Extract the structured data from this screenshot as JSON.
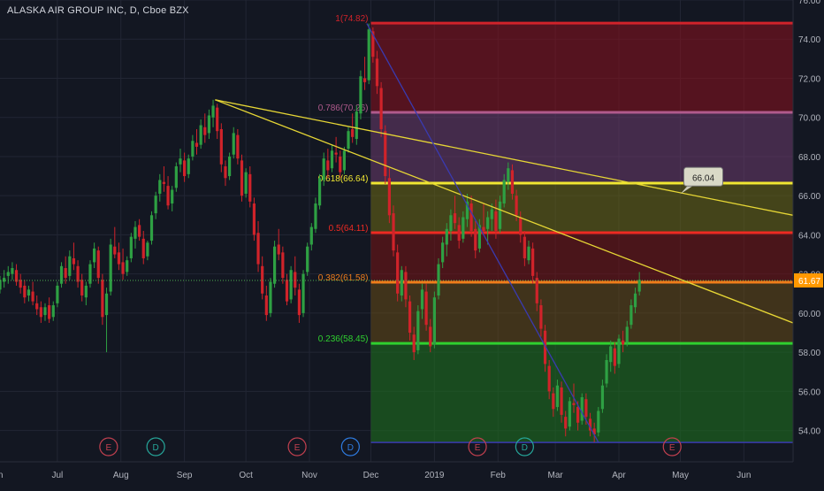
{
  "title": "ALASKA AIR GROUP INC, D, Cboe BZX",
  "colors": {
    "background": "#131722",
    "grid": "#222634",
    "axis_text": "#b2b5be",
    "up": "#2ea043",
    "down": "#d0232a",
    "trend": "#e6d635",
    "diag": "#3a3ab0"
  },
  "chart_data": {
    "type": "candlestick",
    "title": "ALASKA AIR GROUP INC, D, Cboe BZX",
    "ylim": [
      52.4,
      76.0
    ],
    "y_ticks": [
      54.0,
      56.0,
      58.0,
      60.0,
      62.0,
      64.0,
      66.0,
      68.0,
      70.0,
      72.0,
      74.0,
      76.0
    ],
    "x_ticks": [
      {
        "label": "Jun",
        "day": 0
      },
      {
        "label": "Jul",
        "day": 30
      },
      {
        "label": "Aug",
        "day": 61
      },
      {
        "label": "Sep",
        "day": 92
      },
      {
        "label": "Oct",
        "day": 122
      },
      {
        "label": "Nov",
        "day": 153
      },
      {
        "label": "Dec",
        "day": 183
      },
      {
        "label": "2019",
        "day": 214
      },
      {
        "label": "Feb",
        "day": 245
      },
      {
        "label": "Mar",
        "day": 273
      },
      {
        "label": "Apr",
        "day": 304
      },
      {
        "label": "May",
        "day": 334
      },
      {
        "label": "Jun",
        "day": 365
      }
    ],
    "x_range": [
      2,
      389
    ],
    "last_price": 61.67,
    "last_price_label": "61.67",
    "fib_levels": [
      {
        "ratio": 1,
        "price": 74.82,
        "label": "1(74.82)",
        "color": "#d0232a"
      },
      {
        "ratio": 0.786,
        "price": 70.26,
        "label": "0.786(70.26)",
        "color": "#b05a8c"
      },
      {
        "ratio": 0.618,
        "price": 66.64,
        "label": "0.618(66.64)",
        "color": "#f0e732"
      },
      {
        "ratio": 0.5,
        "price": 64.11,
        "label": "0.5(64.11)",
        "color": "#ee2a22"
      },
      {
        "ratio": 0.382,
        "price": 61.58,
        "label": "0.382(61.58)",
        "color": "#f07c1a"
      },
      {
        "ratio": 0.236,
        "price": 58.45,
        "label": "0.236(58.45)",
        "color": "#2fd02f"
      },
      {
        "ratio": 0,
        "price": 53.39,
        "label": "",
        "color": "#3a3ab0"
      }
    ],
    "fib_zones": [
      {
        "from": 74.82,
        "to": 70.26,
        "color": "rgba(140,16,30,0.55)"
      },
      {
        "from": 70.26,
        "to": 66.64,
        "color": "rgba(110,60,110,0.55)"
      },
      {
        "from": 66.64,
        "to": 64.11,
        "color": "rgba(110,105,20,0.55)"
      },
      {
        "from": 64.11,
        "to": 61.58,
        "color": "rgba(120,20,20,0.55)"
      },
      {
        "from": 61.58,
        "to": 58.45,
        "color": "rgba(110,80,20,0.5)"
      },
      {
        "from": 58.45,
        "to": 53.39,
        "color": "rgba(30,110,30,0.6)"
      }
    ],
    "fib_start_day": 183,
    "fib_end_day": 389,
    "trendlines": [
      {
        "from": [
          107,
          70.9
        ],
        "to": [
          389,
          65.0
        ],
        "color": "#e6d635"
      },
      {
        "from": [
          107,
          70.9
        ],
        "to": [
          389,
          59.5
        ],
        "color": "#e6d635"
      },
      {
        "from": [
          181,
          74.8
        ],
        "to": [
          294,
          53.4
        ],
        "color": "#3a3ab0"
      }
    ],
    "callout": {
      "label": "66.04",
      "price": 66.04,
      "day": 334
    },
    "events": [
      {
        "type": "E",
        "day": 55,
        "color": "#c2404f"
      },
      {
        "type": "D",
        "day": 78,
        "color": "#26a69a"
      },
      {
        "type": "E",
        "day": 147,
        "color": "#c2404f"
      },
      {
        "type": "D",
        "day": 173,
        "color": "#2e7be0"
      },
      {
        "type": "E",
        "day": 235,
        "color": "#c2404f"
      },
      {
        "type": "D",
        "day": 258,
        "color": "#26a69a"
      },
      {
        "type": "E",
        "day": 330,
        "color": "#c2404f"
      }
    ],
    "candles": [
      [
        2,
        61.2,
        61.9,
        61.0,
        61.7
      ],
      [
        4,
        61.6,
        62.2,
        61.3,
        61.8
      ],
      [
        6,
        61.9,
        62.4,
        61.5,
        62.1
      ],
      [
        8,
        62.0,
        62.6,
        61.7,
        62.3
      ],
      [
        10,
        62.2,
        62.5,
        61.4,
        61.6
      ],
      [
        12,
        61.7,
        62.0,
        61.0,
        61.3
      ],
      [
        14,
        61.4,
        61.7,
        60.5,
        60.8
      ],
      [
        16,
        60.9,
        61.4,
        60.6,
        61.2
      ],
      [
        18,
        61.1,
        61.6,
        60.4,
        60.6
      ],
      [
        20,
        60.5,
        60.9,
        59.9,
        60.2
      ],
      [
        22,
        60.3,
        60.6,
        59.5,
        59.8
      ],
      [
        24,
        59.9,
        60.5,
        59.6,
        60.3
      ],
      [
        26,
        60.4,
        60.8,
        59.5,
        59.7
      ],
      [
        28,
        59.8,
        60.6,
        59.6,
        60.4
      ],
      [
        30,
        60.5,
        61.6,
        60.3,
        61.4
      ],
      [
        32,
        61.5,
        62.6,
        61.3,
        62.4
      ],
      [
        34,
        62.3,
        62.9,
        61.5,
        61.8
      ],
      [
        36,
        61.9,
        63.2,
        61.7,
        62.9
      ],
      [
        38,
        62.8,
        63.6,
        62.2,
        62.5
      ],
      [
        40,
        62.4,
        62.7,
        61.3,
        61.6
      ],
      [
        42,
        61.7,
        62.0,
        60.6,
        60.9
      ],
      [
        44,
        60.8,
        61.6,
        60.4,
        61.4
      ],
      [
        46,
        61.5,
        62.7,
        61.3,
        62.5
      ],
      [
        48,
        62.6,
        63.6,
        62.3,
        63.3
      ],
      [
        50,
        63.2,
        63.4,
        61.5,
        61.8
      ],
      [
        52,
        61.7,
        62.0,
        59.4,
        59.8
      ],
      [
        54,
        59.9,
        61.3,
        58.0,
        61.0
      ],
      [
        56,
        61.1,
        63.8,
        60.9,
        63.5
      ],
      [
        58,
        63.4,
        64.4,
        62.8,
        63.0
      ],
      [
        60,
        63.1,
        63.6,
        62.2,
        62.5
      ],
      [
        62,
        62.6,
        63.3,
        61.7,
        62.0
      ],
      [
        64,
        62.1,
        62.9,
        61.9,
        62.7
      ],
      [
        66,
        62.8,
        64.1,
        62.6,
        63.9
      ],
      [
        68,
        63.8,
        64.7,
        63.3,
        64.4
      ],
      [
        70,
        64.5,
        64.8,
        63.7,
        63.9
      ],
      [
        72,
        63.8,
        64.2,
        62.5,
        62.8
      ],
      [
        74,
        62.9,
        63.7,
        62.7,
        63.6
      ],
      [
        76,
        63.7,
        65.2,
        63.5,
        65.0
      ],
      [
        78,
        65.1,
        66.2,
        64.8,
        66.0
      ],
      [
        80,
        66.1,
        67.1,
        65.7,
        66.8
      ],
      [
        82,
        66.7,
        67.5,
        66.2,
        66.6
      ],
      [
        84,
        66.5,
        67.0,
        65.3,
        65.5
      ],
      [
        86,
        65.6,
        66.5,
        65.2,
        66.3
      ],
      [
        88,
        66.4,
        67.7,
        66.2,
        67.5
      ],
      [
        90,
        67.6,
        68.4,
        67.2,
        67.9
      ],
      [
        92,
        67.8,
        68.2,
        66.7,
        67.0
      ],
      [
        94,
        67.1,
        68.1,
        66.9,
        67.9
      ],
      [
        96,
        68.0,
        69.1,
        67.8,
        68.8
      ],
      [
        98,
        68.7,
        69.4,
        68.1,
        68.5
      ],
      [
        100,
        68.6,
        69.9,
        68.4,
        69.6
      ],
      [
        102,
        69.5,
        70.2,
        68.7,
        69.1
      ],
      [
        104,
        69.2,
        70.4,
        68.9,
        70.1
      ],
      [
        106,
        70.0,
        70.9,
        69.5,
        70.6
      ],
      [
        108,
        70.5,
        70.7,
        68.9,
        69.3
      ],
      [
        110,
        69.4,
        69.7,
        67.2,
        67.6
      ],
      [
        112,
        67.5,
        67.8,
        66.5,
        66.9
      ],
      [
        114,
        67.0,
        68.2,
        66.8,
        68.0
      ],
      [
        116,
        68.1,
        69.5,
        67.9,
        69.2
      ],
      [
        118,
        69.1,
        69.4,
        67.6,
        67.9
      ],
      [
        120,
        67.8,
        68.1,
        65.7,
        66.0
      ],
      [
        122,
        66.1,
        67.4,
        65.9,
        67.2
      ],
      [
        124,
        67.1,
        67.5,
        65.4,
        65.7
      ],
      [
        126,
        65.6,
        65.9,
        63.7,
        64.0
      ],
      [
        128,
        64.1,
        64.7,
        62.1,
        62.5
      ],
      [
        130,
        62.4,
        62.9,
        60.7,
        61.0
      ],
      [
        132,
        60.9,
        61.4,
        59.6,
        59.9
      ],
      [
        134,
        60.0,
        61.8,
        59.8,
        61.6
      ],
      [
        136,
        61.5,
        63.7,
        61.3,
        63.4
      ],
      [
        138,
        63.5,
        64.3,
        62.7,
        63.0
      ],
      [
        140,
        63.1,
        63.4,
        61.5,
        61.8
      ],
      [
        142,
        61.7,
        62.0,
        60.4,
        60.6
      ],
      [
        144,
        60.7,
        62.4,
        60.5,
        62.2
      ],
      [
        146,
        62.1,
        62.9,
        60.9,
        61.3
      ],
      [
        148,
        61.2,
        61.5,
        59.5,
        59.9
      ],
      [
        150,
        60.0,
        62.2,
        59.8,
        62.0
      ],
      [
        152,
        62.1,
        63.6,
        61.9,
        63.4
      ],
      [
        154,
        63.5,
        64.6,
        63.2,
        64.4
      ],
      [
        156,
        64.3,
        65.9,
        64.1,
        65.6
      ],
      [
        158,
        65.5,
        67.1,
        65.3,
        66.9
      ],
      [
        160,
        66.8,
        68.2,
        66.5,
        67.9
      ],
      [
        162,
        67.8,
        68.4,
        66.9,
        67.3
      ],
      [
        164,
        67.4,
        68.6,
        67.2,
        68.3
      ],
      [
        166,
        68.2,
        69.0,
        67.7,
        68.1
      ],
      [
        168,
        68.0,
        68.3,
        66.9,
        67.2
      ],
      [
        170,
        67.3,
        68.5,
        67.1,
        68.3
      ],
      [
        172,
        68.4,
        69.5,
        68.2,
        69.3
      ],
      [
        174,
        69.4,
        70.2,
        68.7,
        69.0
      ],
      [
        176,
        68.9,
        70.6,
        68.6,
        70.3
      ],
      [
        178,
        70.2,
        72.4,
        69.9,
        72.1
      ],
      [
        180,
        72.0,
        73.1,
        71.4,
        71.8
      ],
      [
        182,
        71.9,
        74.8,
        71.7,
        74.5
      ],
      [
        184,
        74.4,
        74.6,
        72.8,
        73.1
      ],
      [
        186,
        73.0,
        73.4,
        71.2,
        71.6
      ],
      [
        188,
        71.5,
        71.8,
        69.0,
        69.4
      ],
      [
        190,
        69.3,
        69.6,
        66.6,
        67.0
      ],
      [
        192,
        66.9,
        67.4,
        64.6,
        65.0
      ],
      [
        194,
        65.1,
        65.5,
        62.9,
        63.2
      ],
      [
        196,
        63.1,
        63.5,
        60.6,
        61.0
      ],
      [
        198,
        60.9,
        62.4,
        60.6,
        62.2
      ],
      [
        200,
        62.1,
        62.4,
        60.3,
        60.7
      ],
      [
        202,
        60.6,
        60.9,
        58.6,
        59.0
      ],
      [
        204,
        58.9,
        59.3,
        57.6,
        58.0
      ],
      [
        206,
        58.1,
        60.4,
        57.9,
        60.1
      ],
      [
        208,
        60.2,
        61.5,
        59.7,
        61.2
      ],
      [
        210,
        61.1,
        61.5,
        59.1,
        59.4
      ],
      [
        212,
        59.3,
        59.7,
        58.0,
        58.3
      ],
      [
        214,
        58.4,
        61.1,
        58.2,
        60.8
      ],
      [
        216,
        60.9,
        62.8,
        60.7,
        62.5
      ],
      [
        218,
        62.6,
        63.9,
        62.3,
        63.6
      ],
      [
        220,
        63.5,
        64.6,
        62.9,
        64.3
      ],
      [
        222,
        64.2,
        65.3,
        63.7,
        65.0
      ],
      [
        224,
        65.1,
        66.0,
        64.3,
        64.6
      ],
      [
        226,
        64.5,
        64.9,
        63.3,
        63.7
      ],
      [
        228,
        63.8,
        65.2,
        63.6,
        64.9
      ],
      [
        230,
        64.8,
        66.1,
        64.4,
        65.7
      ],
      [
        232,
        65.6,
        66.0,
        63.9,
        64.2
      ],
      [
        234,
        64.3,
        64.7,
        62.8,
        63.2
      ],
      [
        236,
        63.3,
        64.8,
        63.1,
        64.5
      ],
      [
        238,
        64.4,
        65.6,
        64.0,
        64.2
      ],
      [
        240,
        64.3,
        65.2,
        63.5,
        64.9
      ],
      [
        242,
        64.8,
        65.6,
        64.2,
        65.3
      ],
      [
        244,
        65.2,
        65.8,
        63.8,
        64.2
      ],
      [
        246,
        64.3,
        66.0,
        64.1,
        65.7
      ],
      [
        248,
        65.6,
        67.1,
        65.4,
        66.8
      ],
      [
        250,
        66.7,
        67.7,
        66.3,
        67.4
      ],
      [
        252,
        67.3,
        67.6,
        65.8,
        66.1
      ],
      [
        254,
        66.0,
        66.3,
        64.7,
        65.0
      ],
      [
        256,
        64.9,
        65.2,
        63.6,
        64.0
      ],
      [
        258,
        63.9,
        64.2,
        62.4,
        62.8
      ],
      [
        260,
        62.7,
        63.7,
        62.5,
        63.4
      ],
      [
        262,
        63.3,
        63.6,
        61.5,
        61.9
      ],
      [
        264,
        61.8,
        62.1,
        60.1,
        60.5
      ],
      [
        266,
        60.4,
        60.7,
        58.8,
        59.2
      ],
      [
        268,
        59.1,
        59.4,
        57.0,
        57.4
      ],
      [
        270,
        57.3,
        57.6,
        55.6,
        56.0
      ],
      [
        272,
        55.9,
        56.2,
        54.7,
        55.1
      ],
      [
        274,
        55.2,
        56.6,
        55.0,
        56.3
      ],
      [
        276,
        56.2,
        56.5,
        54.4,
        54.8
      ],
      [
        278,
        54.7,
        55.0,
        53.7,
        54.1
      ],
      [
        280,
        54.2,
        55.7,
        54.0,
        55.5
      ],
      [
        282,
        55.4,
        56.4,
        54.9,
        55.3
      ],
      [
        284,
        55.2,
        55.5,
        54.0,
        54.4
      ],
      [
        286,
        54.5,
        55.9,
        54.3,
        55.7
      ],
      [
        288,
        55.6,
        55.9,
        54.3,
        54.7
      ],
      [
        290,
        54.6,
        54.9,
        53.7,
        54.0
      ],
      [
        292,
        54.1,
        54.4,
        53.4,
        53.8
      ],
      [
        294,
        53.9,
        55.2,
        53.7,
        55.0
      ],
      [
        296,
        55.1,
        56.6,
        54.9,
        56.3
      ],
      [
        298,
        56.4,
        57.9,
        56.2,
        57.6
      ],
      [
        300,
        57.5,
        58.6,
        57.0,
        58.3
      ],
      [
        302,
        58.2,
        58.5,
        56.9,
        57.3
      ],
      [
        304,
        57.4,
        58.9,
        57.2,
        58.7
      ],
      [
        306,
        58.6,
        59.1,
        58.0,
        58.4
      ],
      [
        308,
        58.5,
        59.6,
        58.3,
        59.3
      ],
      [
        310,
        59.4,
        60.7,
        59.2,
        60.4
      ],
      [
        312,
        60.3,
        61.3,
        60.0,
        61.0
      ],
      [
        314,
        61.1,
        62.1,
        60.9,
        61.7
      ]
    ]
  }
}
